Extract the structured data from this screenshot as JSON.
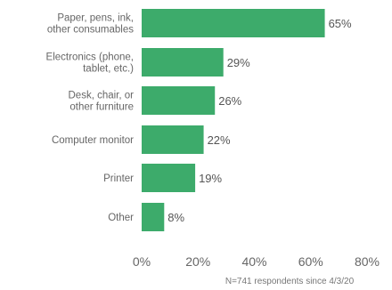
{
  "chart_data": {
    "type": "bar",
    "orientation": "horizontal",
    "categories": [
      [
        "Paper, pens, ink,",
        "other consumables"
      ],
      [
        "Electronics (phone,",
        "tablet, etc.)"
      ],
      [
        "Desk, chair, or",
        "other furniture"
      ],
      [
        "Computer monitor"
      ],
      [
        "Printer"
      ],
      [
        "Other"
      ]
    ],
    "values": [
      65,
      29,
      26,
      22,
      19,
      8
    ],
    "value_labels": [
      "65%",
      "29%",
      "26%",
      "22%",
      "19%",
      "8%"
    ],
    "xlim": [
      0,
      80
    ],
    "xticks": [
      0,
      20,
      40,
      60,
      80
    ],
    "xtick_labels": [
      "0%",
      "20%",
      "40%",
      "60%",
      "80%"
    ],
    "grid": false,
    "legend": "none",
    "bar_color": "#3dab6b",
    "footnote": "N=741 respondents since 4/3/20"
  }
}
